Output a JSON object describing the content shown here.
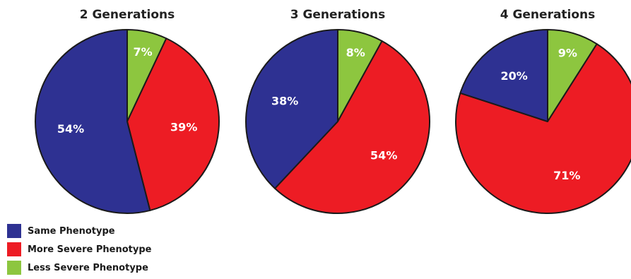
{
  "chart_data": [
    {
      "type": "pie",
      "title": "2 Generations",
      "slices": [
        {
          "name": "Less Severe Phenotype",
          "value": 7,
          "label": "7%"
        },
        {
          "name": "More Severe Phenotype",
          "value": 39,
          "label": "39%"
        },
        {
          "name": "Same Phenotype",
          "value": 54,
          "label": "54%"
        }
      ]
    },
    {
      "type": "pie",
      "title": "3 Generations",
      "slices": [
        {
          "name": "Less Severe Phenotype",
          "value": 8,
          "label": "8%"
        },
        {
          "name": "More Severe Phenotype",
          "value": 54,
          "label": "54%"
        },
        {
          "name": "Same Phenotype",
          "value": 38,
          "label": "38%"
        }
      ]
    },
    {
      "type": "pie",
      "title": "4 Generations",
      "slices": [
        {
          "name": "Less Severe Phenotype",
          "value": 9,
          "label": "9%"
        },
        {
          "name": "More Severe Phenotype",
          "value": 71,
          "label": "71%"
        },
        {
          "name": "Same Phenotype",
          "value": 20,
          "label": "20%"
        }
      ]
    }
  ],
  "legend": {
    "position": "bottom-left",
    "items": [
      {
        "label": "Same Phenotype",
        "color": "#2e3192"
      },
      {
        "label": "More Severe Phenotype",
        "color": "#ed1c24"
      },
      {
        "label": "Less Severe Phenotype",
        "color": "#8dc63f"
      }
    ]
  },
  "colors": {
    "Same Phenotype": "#2e3192",
    "More Severe Phenotype": "#ed1c24",
    "Less Severe Phenotype": "#8dc63f",
    "outline": "#1a1a1a"
  }
}
